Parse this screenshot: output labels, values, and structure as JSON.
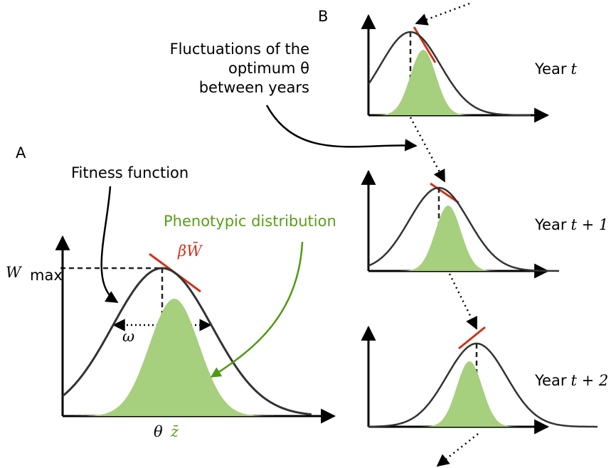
{
  "panel_a": {
    "label": "A",
    "fitness_function": "Fitness function",
    "phenotypic_distribution": "Phenotypic distribution",
    "w_max": {
      "symbol": "W",
      "subscript": "max"
    },
    "gradient": "βW̄",
    "width": "ω",
    "optimum": "θ",
    "mean_phenotype": "z̄"
  },
  "panel_b": {
    "label": "B",
    "fluctuations": [
      "Fluctuations of the",
      "optimum θ",
      "between years"
    ],
    "years": [
      {
        "label": "Year",
        "time": "t"
      },
      {
        "label": "Year",
        "time": "t + 1"
      },
      {
        "label": "Year",
        "time": "t + 2"
      }
    ]
  }
}
